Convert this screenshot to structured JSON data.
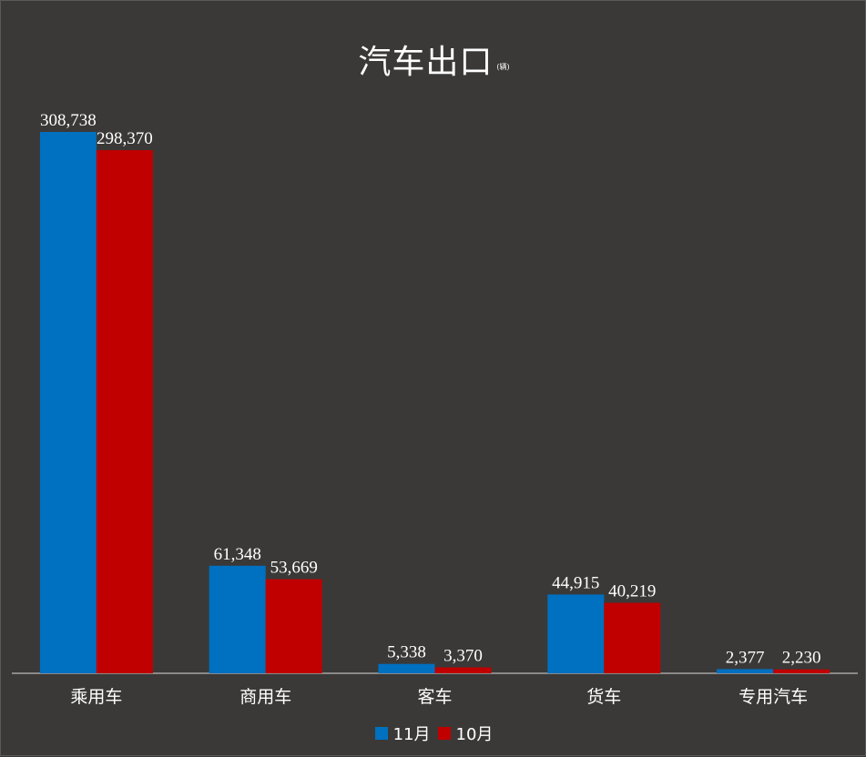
{
  "chart_data": {
    "type": "bar",
    "title": "汽车出口",
    "unit": "(辆)",
    "categories": [
      "乘用车",
      "商用车",
      "客车",
      "货车",
      "专用汽车"
    ],
    "series": [
      {
        "name": "11月",
        "color": "#0070c0",
        "values": [
          308738,
          61348,
          5338,
          44915,
          2377
        ],
        "labels": [
          "308,738",
          "61,348",
          "5,338",
          "44,915",
          "2,377"
        ]
      },
      {
        "name": "10月",
        "color": "#c00000",
        "values": [
          298370,
          53669,
          3370,
          40219,
          2230
        ],
        "labels": [
          "298,370",
          "53,669",
          "3,370",
          "40,219",
          "2,230"
        ]
      }
    ],
    "ylim": [
      0,
      308738
    ],
    "grid": false,
    "legend_position": "bottom"
  }
}
